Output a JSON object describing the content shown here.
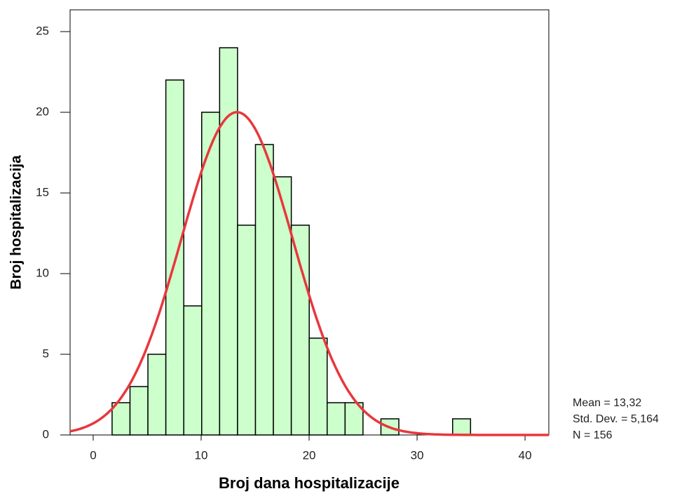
{
  "chart_data": {
    "type": "histogram",
    "x_label": "Broj dana hospitalizacije",
    "y_label": "Broj hospitalizacija",
    "bins": [
      1.75,
      3.41,
      5.07,
      6.73,
      8.39,
      10.05,
      11.71,
      13.37,
      15.03,
      16.69,
      18.35,
      20.01,
      21.67,
      23.33,
      24.99,
      26.65,
      28.31,
      29.97,
      31.63,
      33.29,
      34.95
    ],
    "counts": [
      2,
      3,
      5,
      22,
      8,
      20,
      24,
      13,
      18,
      16,
      13,
      6,
      2,
      2,
      0,
      1,
      0,
      0,
      0,
      1
    ],
    "color": "#ccffcc",
    "edge_color": "#000000",
    "normal_curve": {
      "mean": 13.32,
      "sd": 5.164,
      "n": 156,
      "color": "#e8373c"
    },
    "annotations": [
      "Mean = 13,32",
      "Std. Dev. = 5,164",
      "N = 156"
    ],
    "xlim": [
      -2.14,
      42.2
    ],
    "ylim": [
      0,
      26.35
    ],
    "xticks": [
      0,
      10,
      20,
      30,
      40
    ],
    "yticks": [
      0,
      5,
      10,
      15,
      20,
      25
    ]
  }
}
